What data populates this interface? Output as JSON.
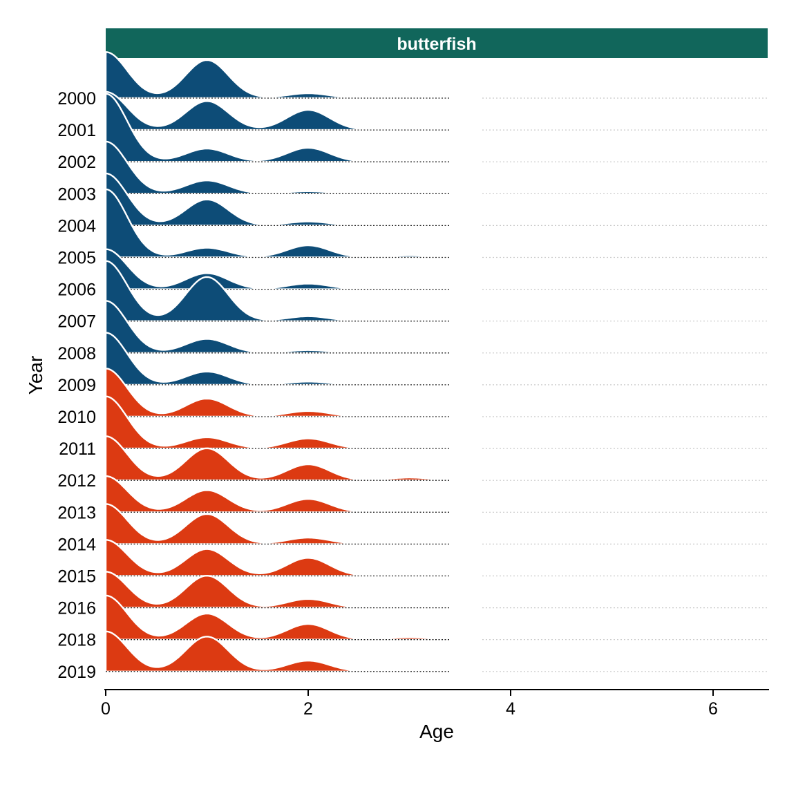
{
  "chart_data": {
    "type": "ridgeline",
    "title": "",
    "panel_label": "butterfish",
    "xlabel": "Age",
    "ylabel": "Year",
    "xlim": [
      0,
      6.55
    ],
    "xticks": [
      0,
      2,
      4,
      6
    ],
    "ages": [
      0,
      1,
      2,
      3
    ],
    "grid": "dotted horizontal baselines",
    "legend": "none",
    "colors": {
      "strip": "#11665b",
      "before_2010": "#0d4c77",
      "from_2010": "#dc3a12",
      "outline": "#ffffff"
    },
    "series": [
      {
        "year": "2000",
        "group": "before_2010",
        "values": [
          1.15,
          0.95,
          0.12,
          0.0
        ]
      },
      {
        "year": "2001",
        "group": "before_2010",
        "values": [
          0.95,
          0.72,
          0.5,
          0.0
        ]
      },
      {
        "year": "2002",
        "group": "before_2010",
        "values": [
          1.7,
          0.33,
          0.35,
          0.03
        ]
      },
      {
        "year": "2003",
        "group": "before_2010",
        "values": [
          1.3,
          0.33,
          0.06,
          0.0
        ]
      },
      {
        "year": "2004",
        "group": "before_2010",
        "values": [
          1.3,
          0.65,
          0.1,
          0.0
        ]
      },
      {
        "year": "2005",
        "group": "before_2010",
        "values": [
          1.7,
          0.24,
          0.3,
          0.05
        ]
      },
      {
        "year": "2006",
        "group": "before_2010",
        "values": [
          1.0,
          0.4,
          0.14,
          0.0
        ]
      },
      {
        "year": "2007",
        "group": "before_2010",
        "values": [
          1.5,
          1.1,
          0.12,
          0.0
        ]
      },
      {
        "year": "2008",
        "group": "before_2010",
        "values": [
          1.3,
          0.35,
          0.07,
          0.0
        ]
      },
      {
        "year": "2009",
        "group": "before_2010",
        "values": [
          1.3,
          0.33,
          0.08,
          0.0
        ]
      },
      {
        "year": "2010",
        "group": "from_2010",
        "values": [
          1.2,
          0.45,
          0.14,
          0.0
        ]
      },
      {
        "year": "2011",
        "group": "from_2010",
        "values": [
          1.3,
          0.28,
          0.25,
          0.02
        ]
      },
      {
        "year": "2012",
        "group": "from_2010",
        "values": [
          1.1,
          0.8,
          0.4,
          0.07
        ]
      },
      {
        "year": "2013",
        "group": "from_2010",
        "values": [
          0.9,
          0.55,
          0.33,
          0.02
        ]
      },
      {
        "year": "2014",
        "group": "from_2010",
        "values": [
          1.0,
          0.75,
          0.16,
          0.03
        ]
      },
      {
        "year": "2015",
        "group": "from_2010",
        "values": [
          0.9,
          0.67,
          0.45,
          0.0
        ]
      },
      {
        "year": "2016",
        "group": "from_2010",
        "values": [
          0.9,
          0.8,
          0.22,
          0.02
        ]
      },
      {
        "year": "2018",
        "group": "from_2010",
        "values": [
          1.1,
          0.65,
          0.39,
          0.06
        ]
      },
      {
        "year": "2019",
        "group": "from_2010",
        "values": [
          1.0,
          0.87,
          0.27,
          0.03
        ]
      }
    ]
  }
}
